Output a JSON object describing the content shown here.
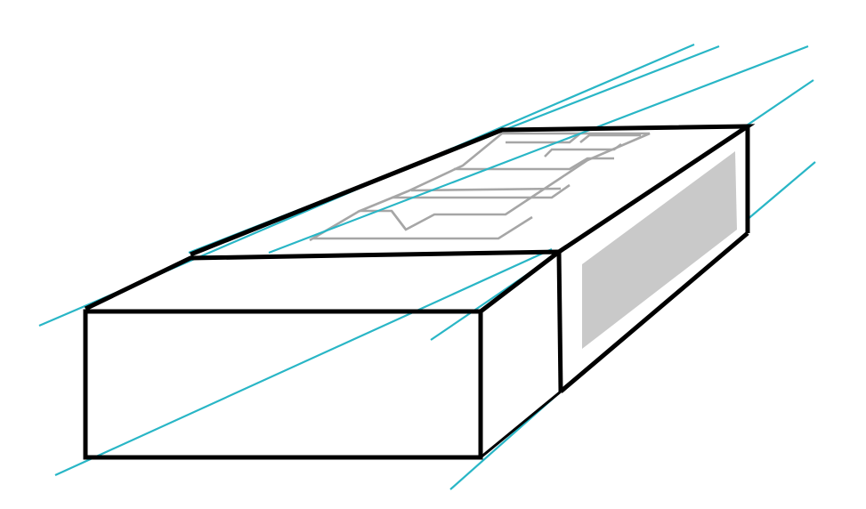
{
  "colors": {
    "guide": "#29b6c6",
    "edge": "#000000",
    "panel": "#c9c9c9",
    "label": "#a6a6a6",
    "background": "#ffffff"
  }
}
